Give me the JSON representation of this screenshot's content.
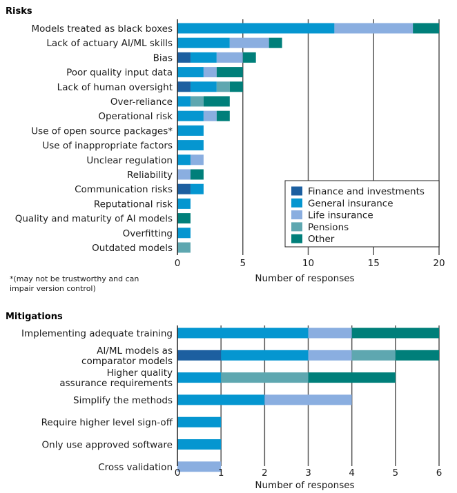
{
  "colors": {
    "Finance and investments": "#1c5fa0",
    "General insurance": "#0596d0",
    "Life insurance": "#8aaee0",
    "Pensions": "#5ea7b0",
    "Other": "#007f7a"
  },
  "chart_data": [
    {
      "type": "bar",
      "orientation": "horizontal",
      "stacked": true,
      "title": "Risks",
      "xlabel": "Number of responses",
      "xlim": [
        0,
        20
      ],
      "xticks": [
        0,
        5,
        10,
        15,
        20
      ],
      "grid": true,
      "legend": "bottom-right",
      "footnote": [
        "*(may not be trustworthy and can",
        "impair version control)"
      ],
      "categories": [
        "Models treated as black boxes",
        "Lack of actuary AI/ML skills",
        "Bias",
        "Poor quality input data",
        "Lack of human oversight",
        "Over-reliance",
        "Operational risk",
        "Use of open source packages*",
        "Use of inappropriate factors",
        "Unclear regulation",
        "Reliability",
        "Communication risks",
        "Reputational risk",
        "Quality and maturity of AI models",
        "Overfitting",
        "Outdated models"
      ],
      "series": [
        {
          "name": "Finance and investments",
          "values": [
            0,
            0,
            1,
            0,
            1,
            0,
            0,
            0,
            0,
            0,
            0,
            1,
            0,
            0,
            0,
            0
          ]
        },
        {
          "name": "General insurance",
          "values": [
            12,
            4,
            2,
            2,
            2,
            1,
            2,
            2,
            2,
            1,
            0,
            1,
            1,
            0,
            1,
            0
          ]
        },
        {
          "name": "Life insurance",
          "values": [
            6,
            3,
            2,
            1,
            0,
            0,
            1,
            0,
            0,
            1,
            1,
            0,
            0,
            0,
            0,
            0
          ]
        },
        {
          "name": "Pensions",
          "values": [
            0,
            0,
            0,
            0,
            1,
            1,
            0,
            0,
            0,
            0,
            0,
            0,
            0,
            0,
            0,
            1
          ]
        },
        {
          "name": "Other",
          "values": [
            2,
            1,
            1,
            2,
            1,
            2,
            1,
            0,
            0,
            0,
            1,
            0,
            0,
            1,
            0,
            0
          ]
        }
      ]
    },
    {
      "type": "bar",
      "orientation": "horizontal",
      "stacked": true,
      "title": "Mitigations",
      "xlabel": "Number of responses",
      "xlim": [
        0,
        6
      ],
      "xticks": [
        0,
        1,
        2,
        3,
        4,
        5,
        6
      ],
      "grid": true,
      "categories": [
        [
          "Implementing adequate training"
        ],
        [
          "AI/ML models as",
          "comparator models"
        ],
        [
          "Higher quality",
          "assurance requirements"
        ],
        [
          "Simplify the methods"
        ],
        [
          "Require higher level sign-off"
        ],
        [
          "Only use approved software"
        ],
        [
          "Cross validation"
        ]
      ],
      "series": [
        {
          "name": "Finance and investments",
          "values": [
            0,
            1,
            0,
            0,
            0,
            0,
            0
          ]
        },
        {
          "name": "General insurance",
          "values": [
            3,
            2,
            1,
            2,
            1,
            1,
            0
          ]
        },
        {
          "name": "Life insurance",
          "values": [
            1,
            1,
            0,
            2,
            0,
            0,
            1
          ]
        },
        {
          "name": "Pensions",
          "values": [
            0,
            1,
            2,
            0,
            0,
            0,
            0
          ]
        },
        {
          "name": "Other",
          "values": [
            2,
            1,
            2,
            0,
            0,
            0,
            0
          ]
        }
      ]
    }
  ]
}
